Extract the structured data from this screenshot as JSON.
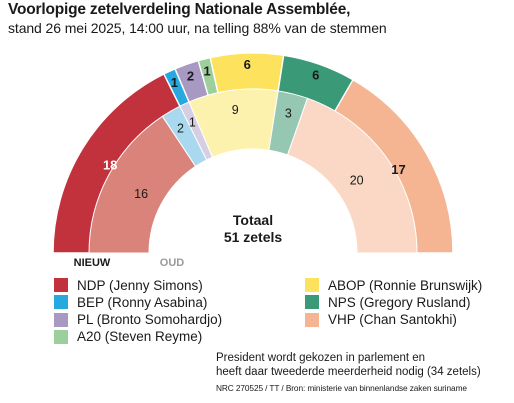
{
  "header": {
    "title": "Voorlopige zetelverdeling Nationale Assemblée,",
    "subtitle": "stand 26 mei 2025, 14:00 uur, na telling 88% van de stemmen"
  },
  "chart_data": {
    "type": "pie",
    "variant": "half-donut (parliament), two rings",
    "rings": [
      {
        "name": "NIEUW",
        "values": [
          {
            "party": "NDP",
            "seats": 18
          },
          {
            "party": "BEP",
            "seats": 1
          },
          {
            "party": "PL",
            "seats": 2
          },
          {
            "party": "A20",
            "seats": 1
          },
          {
            "party": "ABOP",
            "seats": 6
          },
          {
            "party": "NPS",
            "seats": 6
          },
          {
            "party": "VHP",
            "seats": 17
          }
        ]
      },
      {
        "name": "OUD",
        "values": [
          {
            "party": "NDP",
            "seats": 16
          },
          {
            "party": "BEP",
            "seats": 2
          },
          {
            "party": "PL",
            "seats": 1
          },
          {
            "party": "ABOP",
            "seats": 9
          },
          {
            "party": "NPS",
            "seats": 3
          },
          {
            "party": "VHP",
            "seats": 20
          }
        ]
      }
    ],
    "center_label": {
      "line1": "Totaal",
      "line2": "51 zetels"
    },
    "legend_placement": "bottom"
  },
  "parties": [
    {
      "key": "NDP",
      "label": "NDP (Jenny Simons)",
      "color": "#c1323c",
      "old_color": "#d9837a"
    },
    {
      "key": "BEP",
      "label": "BEP (Ronny Asabina)",
      "color": "#27a8df",
      "old_color": "#a9d8ef"
    },
    {
      "key": "PL",
      "label": "PL (Bronto Somohardjo)",
      "color": "#a899c2",
      "old_color": "#d6cee2"
    },
    {
      "key": "A20",
      "label": "A20 (Steven Reyme)",
      "color": "#9ccf9b",
      "old_color": "#cde6cc"
    },
    {
      "key": "ABOP",
      "label": "ABOP (Ronnie Brunswijk)",
      "color": "#fde25e",
      "old_color": "#fdf2ad"
    },
    {
      "key": "NPS",
      "label": "NPS (Gregory Rusland)",
      "color": "#3a9a77",
      "old_color": "#96c7b3"
    },
    {
      "key": "VHP",
      "label": "VHP (Chan Santokhi)",
      "color": "#f6b592",
      "old_color": "#fad8c5"
    }
  ],
  "note": {
    "line1": "President wordt gekozen in parlement en",
    "line2": "heeft daar tweederde  meerderheid nodig (34 zetels)"
  },
  "source": "NRC 270525 / TT / Bron: ministerie van binnenlandse zaken suriname"
}
